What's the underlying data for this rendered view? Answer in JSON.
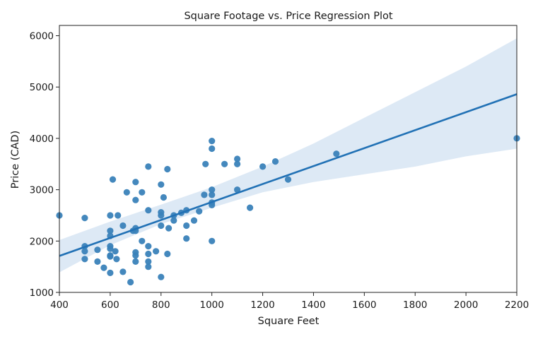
{
  "chart_data": {
    "type": "scatter",
    "title": "Square Footage vs. Price Regression Plot",
    "xlabel": "Square Feet",
    "ylabel": "Price (CAD)",
    "xlim": [
      400,
      2200
    ],
    "ylim": [
      1000,
      6200
    ],
    "xticks": [
      400,
      600,
      800,
      1000,
      1200,
      1400,
      1600,
      1800,
      2000,
      2200
    ],
    "yticks": [
      1000,
      2000,
      3000,
      4000,
      5000,
      6000
    ],
    "grid": false,
    "legend": "none",
    "point_color": "#3a82b9",
    "line_color": "#2171b5",
    "band_color": "#c6dbef",
    "points": [
      [
        400,
        2500
      ],
      [
        500,
        2450
      ],
      [
        500,
        1900
      ],
      [
        500,
        1800
      ],
      [
        500,
        1650
      ],
      [
        550,
        1830
      ],
      [
        550,
        1600
      ],
      [
        575,
        1480
      ],
      [
        600,
        2500
      ],
      [
        600,
        2200
      ],
      [
        600,
        2100
      ],
      [
        600,
        1900
      ],
      [
        600,
        1850
      ],
      [
        600,
        1720
      ],
      [
        600,
        1700
      ],
      [
        600,
        1380
      ],
      [
        610,
        3200
      ],
      [
        620,
        1800
      ],
      [
        625,
        1650
      ],
      [
        630,
        2500
      ],
      [
        650,
        2300
      ],
      [
        650,
        1400
      ],
      [
        665,
        2950
      ],
      [
        680,
        1200
      ],
      [
        690,
        2200
      ],
      [
        700,
        3150
      ],
      [
        700,
        2800
      ],
      [
        700,
        2250
      ],
      [
        700,
        2200
      ],
      [
        700,
        1780
      ],
      [
        700,
        1720
      ],
      [
        700,
        1600
      ],
      [
        725,
        2950
      ],
      [
        725,
        2000
      ],
      [
        750,
        3450
      ],
      [
        750,
        2600
      ],
      [
        750,
        1900
      ],
      [
        750,
        1750
      ],
      [
        750,
        1600
      ],
      [
        750,
        1500
      ],
      [
        780,
        1800
      ],
      [
        800,
        3100
      ],
      [
        800,
        2560
      ],
      [
        800,
        2500
      ],
      [
        800,
        2300
      ],
      [
        800,
        1300
      ],
      [
        810,
        2850
      ],
      [
        825,
        3400
      ],
      [
        825,
        1750
      ],
      [
        830,
        2250
      ],
      [
        850,
        2500
      ],
      [
        850,
        2400
      ],
      [
        880,
        2550
      ],
      [
        900,
        2600
      ],
      [
        900,
        2300
      ],
      [
        900,
        2050
      ],
      [
        930,
        2400
      ],
      [
        950,
        2580
      ],
      [
        970,
        2900
      ],
      [
        975,
        3500
      ],
      [
        1000,
        3950
      ],
      [
        1000,
        3800
      ],
      [
        1000,
        3000
      ],
      [
        1000,
        2900
      ],
      [
        1000,
        2750
      ],
      [
        1000,
        2700
      ],
      [
        1000,
        2000
      ],
      [
        1050,
        3500
      ],
      [
        1100,
        3600
      ],
      [
        1100,
        3500
      ],
      [
        1100,
        3000
      ],
      [
        1150,
        2650
      ],
      [
        1200,
        3450
      ],
      [
        1250,
        3550
      ],
      [
        1300,
        3200
      ],
      [
        1490,
        3700
      ],
      [
        2200,
        4000
      ]
    ],
    "regression": {
      "x": [
        400,
        2200
      ],
      "y": [
        1710,
        4860
      ]
    },
    "confidence_band": {
      "x": [
        400,
        600,
        800,
        1000,
        1200,
        1400,
        1600,
        1800,
        2000,
        2200
      ],
      "lower": [
        1390,
        1920,
        2330,
        2650,
        2950,
        3150,
        3300,
        3450,
        3650,
        3800
      ],
      "upper": [
        2020,
        2380,
        2710,
        3050,
        3450,
        3900,
        4400,
        4900,
        5400,
        5950
      ]
    }
  }
}
